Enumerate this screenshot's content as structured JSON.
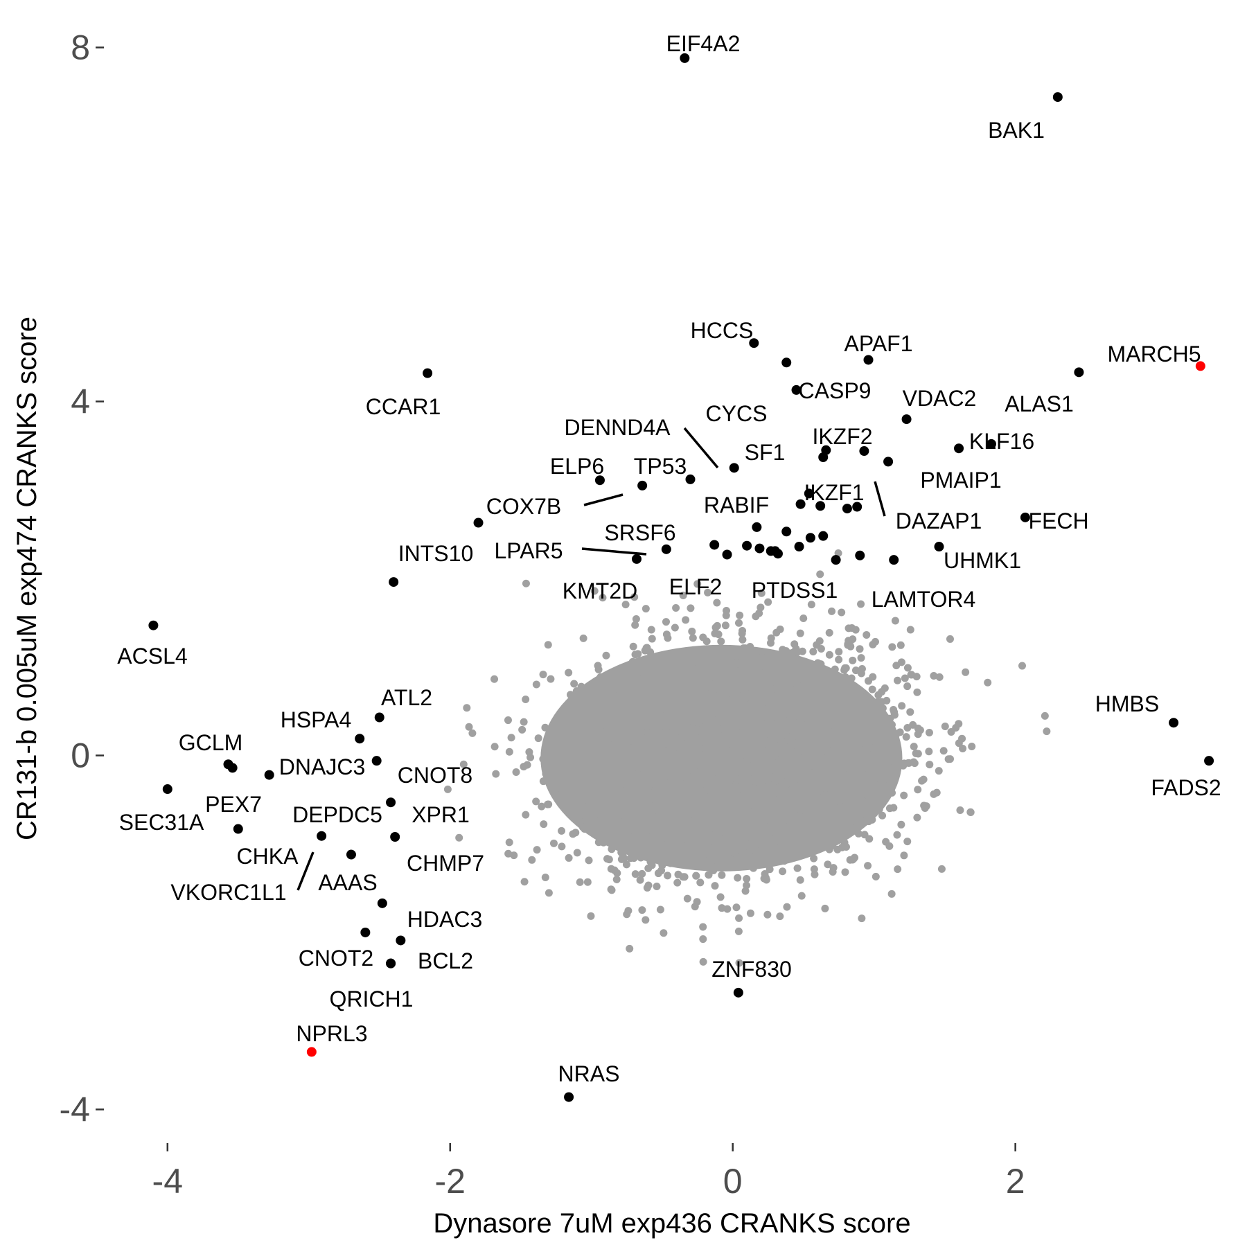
{
  "chart_data": {
    "type": "scatter",
    "xlabel": "Dynasore 7uM exp436 CRANKS score",
    "ylabel": "CR131-b 0.005uM exp474 CRANKS score",
    "xlim": [
      -4.45,
      3.6
    ],
    "ylim": [
      -4.38,
      8.38
    ],
    "x_ticks": [
      -4,
      -2,
      0,
      2
    ],
    "y_ticks": [
      -4,
      0,
      4,
      8
    ],
    "grid": false,
    "legend": "none",
    "colors": {
      "background": "#e6e6e6",
      "labeled": "#000000",
      "highlight": "#ff0000",
      "text": "#4d4d4d"
    },
    "labeled_points": [
      {
        "label": "EIF4A2",
        "x": -0.34,
        "y": 7.88,
        "color": "#000000"
      },
      {
        "label": "BAK1",
        "x": 2.3,
        "y": 7.44,
        "color": "#000000"
      },
      {
        "label": "HCCS",
        "x": 0.15,
        "y": 4.66,
        "color": "#000000"
      },
      {
        "label": "APAF1",
        "x": 0.96,
        "y": 4.47,
        "color": "#000000"
      },
      {
        "label": "MARCH5",
        "x": 3.31,
        "y": 4.4,
        "color": "#ff0000"
      },
      {
        "label": "CCAR1",
        "x": -2.16,
        "y": 4.32,
        "color": "#000000"
      },
      {
        "label": "ALAS1",
        "x": 2.45,
        "y": 4.33,
        "color": "#000000"
      },
      {
        "label": "CASP9",
        "x": 0.45,
        "y": 4.13,
        "color": "#000000"
      },
      {
        "label": "CYCS",
        "x": 0.38,
        "y": 4.44,
        "color": "#000000"
      },
      {
        "label": "VDAC2",
        "x": 1.23,
        "y": 3.8,
        "color": "#000000"
      },
      {
        "label": "DENND4A",
        "x": 0.01,
        "y": 3.25,
        "color": "#000000"
      },
      {
        "label": "IKZF2",
        "x": 0.66,
        "y": 3.45,
        "color": "#000000"
      },
      {
        "label": "KLF16",
        "x": 1.83,
        "y": 3.52,
        "color": "#000000"
      },
      {
        "label": "SF1",
        "x": 0.64,
        "y": 3.37,
        "color": "#000000"
      },
      {
        "label": "PMAIP1",
        "x": 1.6,
        "y": 3.47,
        "color": "#000000"
      },
      {
        "label": "ELP6",
        "x": -0.94,
        "y": 3.11,
        "color": "#000000"
      },
      {
        "label": "TP53",
        "x": -0.3,
        "y": 3.12,
        "color": "#000000"
      },
      {
        "label": "COX7B",
        "x": -0.64,
        "y": 3.05,
        "color": "#000000"
      },
      {
        "label": "IKZF1",
        "x": 1.1,
        "y": 3.32,
        "color": "#000000"
      },
      {
        "label": "RABIF",
        "x": 0.48,
        "y": 2.84,
        "color": "#000000"
      },
      {
        "label": "DAZAP1",
        "x": 0.81,
        "y": 2.79,
        "color": "#000000"
      },
      {
        "label": "FECH",
        "x": 2.07,
        "y": 2.69,
        "color": "#000000"
      },
      {
        "label": "INTS10",
        "x": -1.8,
        "y": 2.63,
        "color": "#000000"
      },
      {
        "label": "SRSF6",
        "x": -0.47,
        "y": 2.33,
        "color": "#000000"
      },
      {
        "label": "LPAR5",
        "x": -0.68,
        "y": 2.22,
        "color": "#000000"
      },
      {
        "label": "UHMK1",
        "x": 1.46,
        "y": 2.36,
        "color": "#000000"
      },
      {
        "label": "KMT2D",
        "x": -0.04,
        "y": 2.27,
        "color": "#000000"
      },
      {
        "label": "ELF2",
        "x": 0.3,
        "y": 2.31,
        "color": "#000000"
      },
      {
        "label": "PTDSS1",
        "x": 0.73,
        "y": 2.21,
        "color": "#000000"
      },
      {
        "label": "LAMTOR4",
        "x": 1.14,
        "y": 2.21,
        "color": "#000000"
      },
      {
        "label": "ACSL4",
        "x": -4.1,
        "y": 1.47,
        "color": "#000000"
      },
      {
        "label": "HMBS",
        "x": 3.12,
        "y": 0.37,
        "color": "#000000"
      },
      {
        "label": "FADS2",
        "x": 3.37,
        "y": -0.06,
        "color": "#000000"
      },
      {
        "label": "ATL2",
        "x": -2.5,
        "y": 0.43,
        "color": "#000000"
      },
      {
        "label": "HSPA4",
        "x": -2.64,
        "y": 0.19,
        "color": "#000000"
      },
      {
        "label": "GCLM",
        "x": -3.57,
        "y": -0.1,
        "color": "#000000"
      },
      {
        "label": "DNAJC3",
        "x": -2.52,
        "y": -0.06,
        "color": "#000000"
      },
      {
        "label": "CNOT8",
        "x": -3.28,
        "y": -0.22,
        "color": "#000000"
      },
      {
        "label": "SEC31A",
        "x": -4.0,
        "y": -0.38,
        "color": "#000000"
      },
      {
        "label": "PEX7",
        "x": -3.54,
        "y": -0.14,
        "color": "#000000"
      },
      {
        "label": "DEPDC5",
        "x": -2.42,
        "y": -0.53,
        "color": "#000000"
      },
      {
        "label": "XPR1",
        "x": -2.39,
        "y": -0.92,
        "color": "#000000"
      },
      {
        "label": "CHKA",
        "x": -3.5,
        "y": -0.83,
        "color": "#000000"
      },
      {
        "label": "VKORC1L1",
        "x": -2.91,
        "y": -0.91,
        "color": "#000000"
      },
      {
        "label": "CHMP7",
        "x": -2.7,
        "y": -1.12,
        "color": "#000000"
      },
      {
        "label": "AAAS",
        "x": -2.48,
        "y": -1.67,
        "color": "#000000"
      },
      {
        "label": "HDAC3",
        "x": -2.35,
        "y": -2.09,
        "color": "#000000"
      },
      {
        "label": "CNOT2",
        "x": -2.6,
        "y": -2.0,
        "color": "#000000"
      },
      {
        "label": "BCL2",
        "x": -2.42,
        "y": -2.35,
        "color": "#000000"
      },
      {
        "label": "QRICH1",
        "x": -2.42,
        "y": -2.35,
        "color": "#000000"
      },
      {
        "label": "ZNF830",
        "x": 0.04,
        "y": -2.68,
        "color": "#000000"
      },
      {
        "label": "NPRL3",
        "x": -2.98,
        "y": -3.35,
        "color": "#ff0000"
      },
      {
        "label": "NRAS",
        "x": -1.16,
        "y": -3.86,
        "color": "#000000"
      }
    ],
    "unlabeled_black_points": [
      {
        "x": 0.93,
        "y": 3.44
      },
      {
        "x": 0.88,
        "y": 2.81
      },
      {
        "x": 0.54,
        "y": 2.96
      },
      {
        "x": 0.62,
        "y": 2.82
      },
      {
        "x": 0.17,
        "y": 2.58
      },
      {
        "x": 0.38,
        "y": 2.53
      },
      {
        "x": 0.64,
        "y": 2.48
      },
      {
        "x": 0.47,
        "y": 2.36
      },
      {
        "x": 0.55,
        "y": 2.46
      },
      {
        "x": 0.19,
        "y": 2.34
      },
      {
        "x": 0.32,
        "y": 2.28
      },
      {
        "x": 0.1,
        "y": 2.37
      },
      {
        "x": -0.13,
        "y": 2.38
      },
      {
        "x": 0.9,
        "y": 2.26
      },
      {
        "x": 0.27,
        "y": 2.31
      },
      {
        "x": -2.4,
        "y": 1.96
      }
    ],
    "background_cloud": {
      "color": "#a0a0a0",
      "approx_center": [
        0.0,
        -0.05
      ],
      "approx_x_spread": [
        -1.8,
        1.5
      ],
      "approx_y_spread": [
        -1.8,
        1.9
      ]
    }
  }
}
